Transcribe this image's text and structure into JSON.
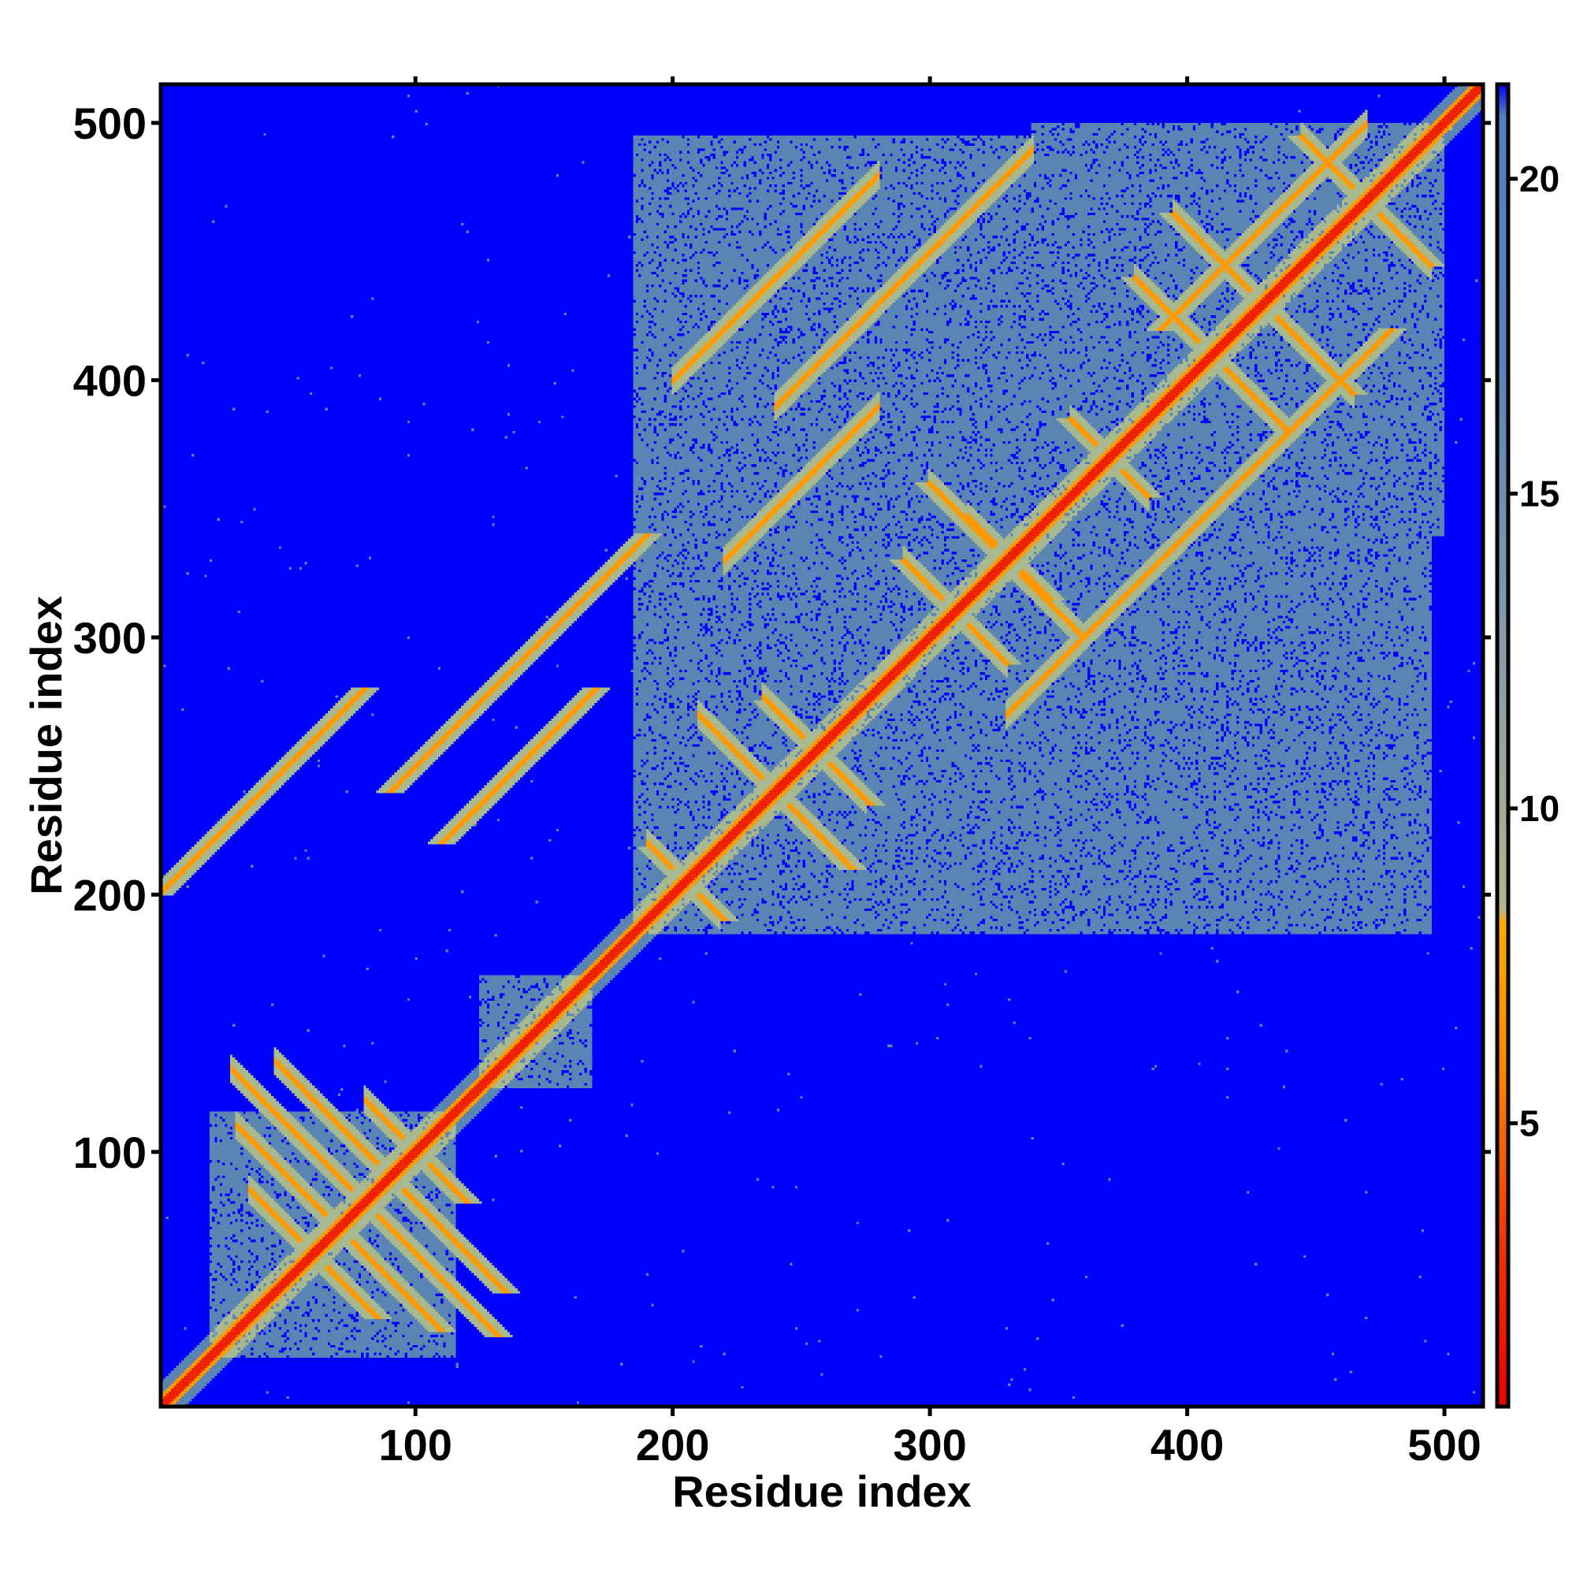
{
  "chart_data": {
    "type": "heatmap",
    "title": "",
    "xlabel": "Residue index",
    "ylabel": "Residue index",
    "xlim": [
      1,
      515
    ],
    "ylim": [
      1,
      515
    ],
    "x_ticks": [
      100,
      200,
      300,
      400,
      500
    ],
    "y_ticks": [
      100,
      200,
      300,
      400,
      500
    ],
    "grid": false,
    "legend": "none",
    "colorbar": {
      "placement": "right",
      "ticks": [
        5,
        10,
        15,
        20
      ],
      "range": [
        0.5,
        21.5
      ],
      "stops": [
        {
          "value": 0.5,
          "color": "#ee0000"
        },
        {
          "value": 3,
          "color": "#ee3300"
        },
        {
          "value": 6,
          "color": "#ff8800"
        },
        {
          "value": 8.2,
          "color": "#ffaa00"
        },
        {
          "value": 8.4,
          "color": "#b5b58a"
        },
        {
          "value": 12,
          "color": "#8c9fa8"
        },
        {
          "value": 17,
          "color": "#5a84b8"
        },
        {
          "value": 21,
          "color": "#5080c0"
        },
        {
          "value": 21.5,
          "color": "#0000ff"
        }
      ]
    },
    "colors": {
      "background": "#0000ff",
      "region_far": "#5a84b4",
      "region_mid": "#a9b98f",
      "contact_close": "#ee2200",
      "contact_mid": "#ff9900"
    },
    "domains": [
      {
        "from": 20,
        "to": 115,
        "value": 17
      },
      {
        "from": 125,
        "to": 168,
        "value": 15
      },
      {
        "from": 185,
        "to": 495,
        "value": 17
      },
      {
        "from": 188,
        "to": 360,
        "value": 16
      },
      {
        "from": 340,
        "to": 500,
        "value": 16
      }
    ],
    "contact_bands": [
      {
        "type": "anti",
        "center": 160,
        "from": 28,
        "to": 105,
        "value": 4
      },
      {
        "type": "anti",
        "center": 180,
        "from": 45,
        "to": 115,
        "value": 4
      },
      {
        "type": "anti",
        "center": 140,
        "from": 30,
        "to": 95,
        "value": 5
      },
      {
        "type": "anti",
        "center": 120,
        "from": 35,
        "to": 70,
        "value": 6
      },
      {
        "type": "anti",
        "center": 200,
        "from": 80,
        "to": 110,
        "value": 6
      },
      {
        "type": "anti",
        "center": 410,
        "from": 190,
        "to": 218,
        "value": 3
      },
      {
        "type": "anti",
        "center": 512,
        "from": 235,
        "to": 275,
        "value": 4
      },
      {
        "type": "anti",
        "center": 480,
        "from": 210,
        "to": 265,
        "value": 5
      },
      {
        "type": "anti",
        "center": 620,
        "from": 290,
        "to": 330,
        "value": 4
      },
      {
        "type": "anti",
        "center": 662,
        "from": 315,
        "to": 345,
        "value": 4
      },
      {
        "type": "anti",
        "center": 740,
        "from": 355,
        "to": 385,
        "value": 5
      },
      {
        "type": "anti",
        "center": 940,
        "from": 445,
        "to": 495,
        "value": 4
      },
      {
        "type": "anti",
        "center": 860,
        "from": 395,
        "to": 465,
        "value": 6
      },
      {
        "type": "anti",
        "center": 660,
        "from": 300,
        "to": 360,
        "value": 7
      },
      {
        "type": "anti",
        "center": 820,
        "from": 380,
        "to": 440,
        "value": 7
      },
      {
        "type": "parallel",
        "offset": 200,
        "from": 200,
        "to": 280,
        "value": 6
      },
      {
        "type": "parallel",
        "offset": 110,
        "from": 220,
        "to": 280,
        "value": 6
      },
      {
        "type": "parallel",
        "offset": 150,
        "from": 240,
        "to": 340,
        "value": 7
      },
      {
        "type": "parallel",
        "offset": -60,
        "from": 330,
        "to": 420,
        "value": 7
      },
      {
        "type": "parallel",
        "offset": 30,
        "from": 420,
        "to": 470,
        "value": 6
      }
    ]
  }
}
